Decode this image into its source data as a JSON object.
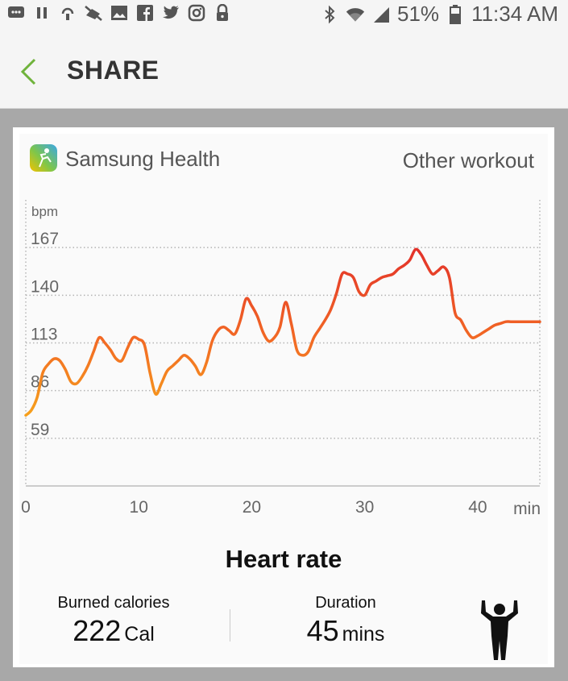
{
  "status_bar": {
    "battery": "51%",
    "time": "11:34 AM",
    "left_icons": [
      "chat-icon",
      "pause-icon",
      "usb-icon",
      "mute-icon",
      "image-icon",
      "facebook-icon",
      "twitter-icon",
      "instagram-icon",
      "lock-icon"
    ],
    "right_icons": [
      "bluetooth-icon",
      "wifi-icon",
      "signal-icon",
      "battery-icon"
    ]
  },
  "app_bar": {
    "title": "SHARE"
  },
  "card": {
    "app_name": "Samsung Health",
    "workout_type": "Other workout",
    "chart_title": "Heart rate",
    "stats": {
      "calories": {
        "label": "Burned calories",
        "value": "222",
        "unit": "Cal"
      },
      "duration": {
        "label": "Duration",
        "value": "45",
        "unit": "mins"
      }
    },
    "workout_icon": "strength-person-icon"
  },
  "chart_data": {
    "type": "line",
    "title": "Heart rate",
    "ylabel": "bpm",
    "xlabel": "min",
    "yticks": [
      "167",
      "140",
      "113",
      "86",
      "59"
    ],
    "ytick_values": [
      167,
      140,
      113,
      86,
      59
    ],
    "xticks": [
      "0",
      "10",
      "20",
      "30",
      "40"
    ],
    "xtick_values": [
      0,
      10,
      20,
      30,
      40
    ],
    "xlim": [
      0,
      45.5
    ],
    "ylim": [
      32,
      194
    ],
    "grid": true,
    "colors": {
      "low": "#f6a01c",
      "mid": "#f26a24",
      "high": "#e3322a",
      "grid": "#b4b4b4"
    },
    "series": [
      {
        "x": [
          0,
          0.5,
          1,
          1.5,
          2,
          2.5,
          3,
          3.5,
          4,
          4.5,
          5,
          5.5,
          6,
          6.5,
          7,
          7.5,
          8,
          8.5,
          9,
          9.5,
          10,
          10.5,
          11,
          11.5,
          12,
          12.5,
          13,
          13.5,
          14,
          14.5,
          15,
          15.5,
          16,
          16.5,
          17,
          17.5,
          18,
          18.5,
          19,
          19.5,
          20,
          20.5,
          21,
          21.5,
          22,
          22.5,
          23,
          23.5,
          24,
          24.5,
          25,
          25.5,
          26,
          26.5,
          27,
          27.5,
          28,
          28.5,
          29,
          29.5,
          30,
          30.5,
          31,
          31.5,
          32,
          32.5,
          33,
          33.5,
          34,
          34.5,
          35,
          35.5,
          36,
          36.5,
          37,
          37.5,
          38,
          38.5,
          39,
          39.5,
          40,
          40.5,
          41,
          41.5,
          42,
          42.5,
          43,
          43.5,
          44,
          44.5,
          45,
          45.5
        ],
        "values": [
          72,
          75,
          82,
          96,
          101,
          104,
          103,
          98,
          91,
          90,
          94,
          100,
          108,
          116,
          113,
          109,
          104,
          103,
          110,
          116,
          115,
          112,
          96,
          84,
          90,
          97,
          100,
          103,
          106,
          104,
          100,
          95,
          102,
          114,
          120,
          122,
          120,
          118,
          126,
          138,
          134,
          128,
          119,
          114,
          116,
          122,
          136,
          124,
          109,
          106,
          108,
          116,
          121,
          126,
          132,
          141,
          152,
          152,
          150,
          142,
          140,
          146,
          148,
          150,
          151,
          152,
          155,
          157,
          160,
          166,
          163,
          157,
          152,
          154,
          156,
          150,
          130,
          126,
          120,
          116,
          117,
          119,
          121,
          123,
          124,
          125,
          125,
          125,
          125,
          125,
          125,
          125
        ]
      }
    ]
  }
}
